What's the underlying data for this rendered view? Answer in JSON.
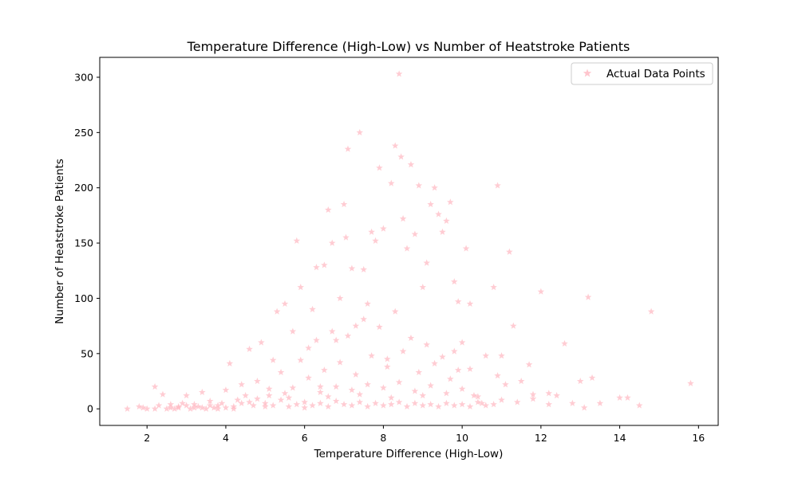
{
  "chart_data": {
    "type": "scatter",
    "title": "Temperature Difference (High-Low) vs Number of Heatstroke Patients",
    "xlabel": "Temperature Difference (High-Low)",
    "ylabel": "Number of Heatstroke Patients",
    "xlim": [
      0.8,
      16.5
    ],
    "ylim": [
      -15,
      318
    ],
    "xticks": [
      2,
      4,
      6,
      8,
      10,
      12,
      14,
      16
    ],
    "yticks": [
      0,
      50,
      100,
      150,
      200,
      250,
      300
    ],
    "legend_position": "top-right",
    "marker": "star",
    "grid": false,
    "series": [
      {
        "name": "Actual Data Points",
        "color": "#ffb6c1",
        "points": [
          [
            1.5,
            0
          ],
          [
            1.8,
            2
          ],
          [
            1.9,
            1
          ],
          [
            2.0,
            0
          ],
          [
            2.2,
            0
          ],
          [
            2.3,
            3
          ],
          [
            2.4,
            13
          ],
          [
            2.5,
            0
          ],
          [
            2.2,
            20
          ],
          [
            2.6,
            1
          ],
          [
            2.7,
            0
          ],
          [
            2.8,
            2
          ],
          [
            2.9,
            5
          ],
          [
            3.0,
            12
          ],
          [
            3.1,
            0
          ],
          [
            3.2,
            1
          ],
          [
            3.3,
            2
          ],
          [
            3.4,
            15
          ],
          [
            3.5,
            0
          ],
          [
            3.6,
            3
          ],
          [
            3.7,
            1
          ],
          [
            3.8,
            0
          ],
          [
            3.9,
            5
          ],
          [
            4.0,
            17
          ],
          [
            4.1,
            41
          ],
          [
            4.2,
            0
          ],
          [
            4.3,
            8
          ],
          [
            4.4,
            22
          ],
          [
            4.5,
            12
          ],
          [
            4.6,
            54
          ],
          [
            4.7,
            3
          ],
          [
            4.8,
            25
          ],
          [
            4.9,
            60
          ],
          [
            5.0,
            2
          ],
          [
            5.1,
            18
          ],
          [
            5.2,
            44
          ],
          [
            5.3,
            88
          ],
          [
            5.4,
            33
          ],
          [
            5.5,
            95
          ],
          [
            5.6,
            10
          ],
          [
            5.7,
            70
          ],
          [
            5.8,
            152
          ],
          [
            5.9,
            110
          ],
          [
            6.0,
            1
          ],
          [
            6.1,
            55
          ],
          [
            6.2,
            90
          ],
          [
            6.3,
            128
          ],
          [
            6.4,
            20
          ],
          [
            6.5,
            130
          ],
          [
            6.6,
            180
          ],
          [
            6.7,
            150
          ],
          [
            6.8,
            62
          ],
          [
            6.9,
            100
          ],
          [
            7.0,
            185
          ],
          [
            7.05,
            155
          ],
          [
            7.1,
            235
          ],
          [
            7.2,
            127
          ],
          [
            7.3,
            75
          ],
          [
            7.4,
            250
          ],
          [
            7.5,
            126
          ],
          [
            7.6,
            95
          ],
          [
            7.7,
            160
          ],
          [
            7.8,
            152
          ],
          [
            7.9,
            218
          ],
          [
            8.0,
            163
          ],
          [
            8.1,
            45
          ],
          [
            8.2,
            204
          ],
          [
            8.3,
            238
          ],
          [
            8.4,
            303
          ],
          [
            8.45,
            228
          ],
          [
            8.5,
            172
          ],
          [
            8.6,
            145
          ],
          [
            8.7,
            221
          ],
          [
            8.8,
            158
          ],
          [
            8.9,
            202
          ],
          [
            9.0,
            110
          ],
          [
            9.1,
            132
          ],
          [
            9.2,
            185
          ],
          [
            9.3,
            200
          ],
          [
            9.4,
            176
          ],
          [
            9.5,
            160
          ],
          [
            9.6,
            170
          ],
          [
            9.7,
            187
          ],
          [
            9.8,
            115
          ],
          [
            9.9,
            97
          ],
          [
            10.0,
            60
          ],
          [
            10.1,
            145
          ],
          [
            10.2,
            95
          ],
          [
            10.3,
            12
          ],
          [
            10.5,
            5
          ],
          [
            10.8,
            110
          ],
          [
            10.9,
            202
          ],
          [
            11.0,
            48
          ],
          [
            11.2,
            142
          ],
          [
            11.3,
            75
          ],
          [
            11.5,
            25
          ],
          [
            11.7,
            40
          ],
          [
            11.8,
            13
          ],
          [
            12.0,
            106
          ],
          [
            12.2,
            4
          ],
          [
            12.4,
            12
          ],
          [
            12.6,
            59
          ],
          [
            12.8,
            5
          ],
          [
            13.0,
            25
          ],
          [
            13.1,
            1
          ],
          [
            13.2,
            101
          ],
          [
            13.3,
            28
          ],
          [
            13.5,
            5
          ],
          [
            14.0,
            10
          ],
          [
            14.2,
            10
          ],
          [
            14.5,
            3
          ],
          [
            14.8,
            88
          ],
          [
            15.8,
            23
          ],
          [
            5.0,
            5
          ],
          [
            5.2,
            3
          ],
          [
            5.4,
            8
          ],
          [
            5.6,
            2
          ],
          [
            5.8,
            4
          ],
          [
            6.0,
            6
          ],
          [
            6.2,
            3
          ],
          [
            6.4,
            5
          ],
          [
            6.6,
            2
          ],
          [
            6.8,
            7
          ],
          [
            7.0,
            4
          ],
          [
            7.2,
            3
          ],
          [
            7.4,
            6
          ],
          [
            7.6,
            2
          ],
          [
            7.8,
            5
          ],
          [
            8.0,
            3
          ],
          [
            8.2,
            4
          ],
          [
            8.4,
            6
          ],
          [
            8.6,
            2
          ],
          [
            8.8,
            5
          ],
          [
            9.0,
            3
          ],
          [
            9.2,
            4
          ],
          [
            9.4,
            2
          ],
          [
            9.6,
            5
          ],
          [
            9.8,
            3
          ],
          [
            10.0,
            4
          ],
          [
            10.2,
            2
          ],
          [
            10.4,
            6
          ],
          [
            10.6,
            3
          ],
          [
            10.8,
            4
          ],
          [
            6.1,
            28
          ],
          [
            6.5,
            35
          ],
          [
            6.9,
            42
          ],
          [
            7.3,
            31
          ],
          [
            7.7,
            48
          ],
          [
            8.1,
            38
          ],
          [
            8.5,
            52
          ],
          [
            8.9,
            33
          ],
          [
            9.3,
            41
          ],
          [
            9.7,
            27
          ],
          [
            6.3,
            62
          ],
          [
            6.7,
            70
          ],
          [
            7.1,
            66
          ],
          [
            7.5,
            81
          ],
          [
            7.9,
            74
          ],
          [
            8.3,
            88
          ],
          [
            8.7,
            64
          ],
          [
            9.1,
            58
          ],
          [
            9.5,
            47
          ],
          [
            5.9,
            44
          ],
          [
            6.4,
            15
          ],
          [
            6.8,
            20
          ],
          [
            7.2,
            17
          ],
          [
            7.6,
            22
          ],
          [
            8.0,
            19
          ],
          [
            8.4,
            24
          ],
          [
            8.8,
            16
          ],
          [
            9.2,
            21
          ],
          [
            9.6,
            14
          ],
          [
            10.0,
            18
          ],
          [
            4.6,
            6
          ],
          [
            4.8,
            9
          ],
          [
            5.1,
            12
          ],
          [
            5.5,
            14
          ],
          [
            5.7,
            19
          ],
          [
            6.6,
            11
          ],
          [
            7.4,
            13
          ],
          [
            8.2,
            10
          ],
          [
            9.0,
            12
          ],
          [
            10.4,
            11
          ],
          [
            11.0,
            8
          ],
          [
            11.4,
            6
          ],
          [
            11.8,
            9
          ],
          [
            12.2,
            14
          ],
          [
            10.9,
            30
          ],
          [
            11.1,
            22
          ],
          [
            10.6,
            48
          ],
          [
            10.2,
            36
          ],
          [
            9.8,
            52
          ],
          [
            9.9,
            35
          ],
          [
            3.2,
            4
          ],
          [
            3.6,
            7
          ],
          [
            3.0,
            3
          ],
          [
            2.8,
            1
          ],
          [
            2.6,
            4
          ],
          [
            3.4,
            1
          ],
          [
            3.8,
            3
          ],
          [
            4.2,
            2
          ],
          [
            4.4,
            5
          ],
          [
            4.0,
            1
          ]
        ]
      }
    ]
  }
}
